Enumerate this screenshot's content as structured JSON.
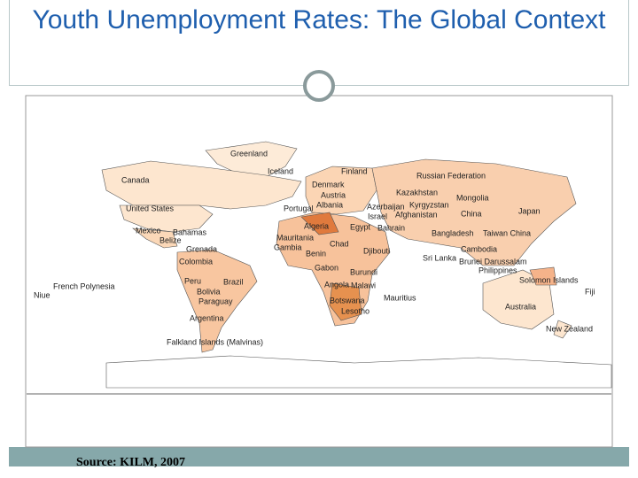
{
  "header": {
    "title": "Youth Unemployment Rates: The Global Context"
  },
  "map": {
    "labels": [
      "Greenland",
      "Iceland",
      "Finland",
      "Russian Federation",
      "Canada",
      "Denmark",
      "Austria",
      "Kazakhstan",
      "Mongolia",
      "Portugal",
      "Albania",
      "Azerbaijan",
      "Kyrgyzstan",
      "United States",
      "Israel",
      "Afghanistan",
      "China",
      "Japan",
      "Algeria",
      "Egypt",
      "Bahrain",
      "Mexico",
      "Bahamas",
      "Belize",
      "Mauritania",
      "Bangladesh",
      "Taiwan China",
      "Grenada",
      "Gambia",
      "Chad",
      "Colombia",
      "Benin",
      "Djibouti",
      "Sri Lanka",
      "Cambodia",
      "Brunei Darussalam",
      "Gabon",
      "Burundi",
      "Philippines",
      "French Polynesia",
      "Peru",
      "Brazil",
      "Angola",
      "Malawi",
      "Solomon Islands",
      "Fiji",
      "Niue",
      "Bolivia",
      "Mauritius",
      "Paraguay",
      "Botswana",
      "Australia",
      "Lesotho",
      "Argentina",
      "New Zealand",
      "Falkland Islands (Malvinas)"
    ]
  },
  "footer": {
    "source": "Source: KILM, 2007"
  }
}
